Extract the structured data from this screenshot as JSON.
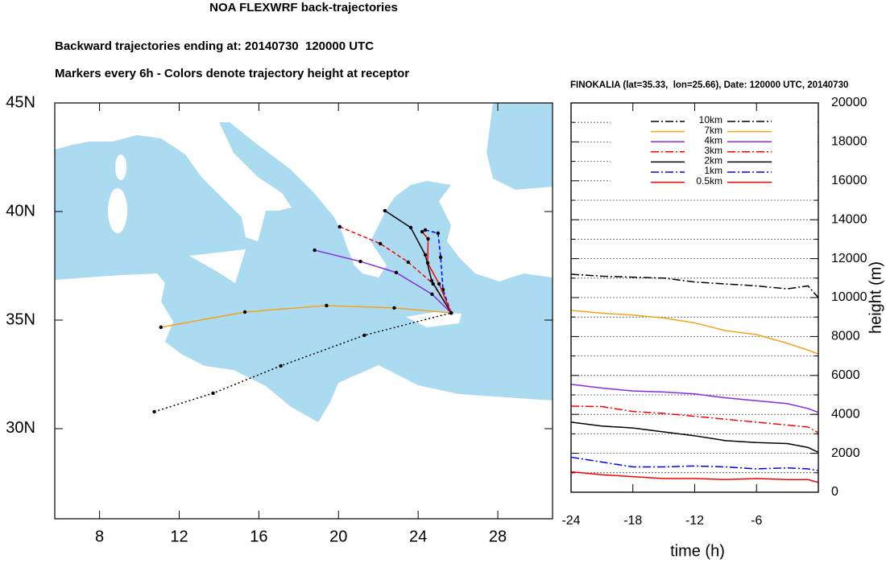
{
  "chart_data": [
    {
      "type": "trajectory-map",
      "title": "NOA FLEXWRF back-trajectories",
      "subtitle": "Backward trajectories ending at: 20140730  120000 UTC",
      "annotation": "Markers every 6h - Colors denote trajectory height at receptor",
      "xlim": [
        5.75,
        30.75
      ],
      "ylim": [
        25.85,
        45
      ],
      "xticks": [
        8,
        12,
        16,
        20,
        24,
        28
      ],
      "yticks": [
        {
          "value": 30,
          "label": "30N"
        },
        {
          "value": 35,
          "label": "35N"
        },
        {
          "value": 40,
          "label": "40N"
        },
        {
          "value": 45,
          "label": "45N"
        }
      ],
      "series": [
        {
          "color": "#000000",
          "dash": "dotted",
          "lon": [
            10.75,
            13.7,
            17.1,
            21.3,
            25.66
          ],
          "lat": [
            30.78,
            31.63,
            32.89,
            34.3,
            35.33
          ]
        },
        {
          "color": "#f5a21b",
          "dash": "solid",
          "lon": [
            11.08,
            15.3,
            19.4,
            22.8,
            25.66
          ],
          "lat": [
            34.67,
            35.37,
            35.67,
            35.56,
            35.33
          ]
        },
        {
          "color": "#8a2be2",
          "dash": "solid",
          "lon": [
            18.8,
            21.1,
            22.9,
            24.7,
            25.66
          ],
          "lat": [
            38.22,
            37.7,
            37.19,
            36.19,
            35.33
          ]
        },
        {
          "color": "#ff0000",
          "dash": "dashed",
          "lon": [
            20.06,
            22.1,
            23.5,
            24.75,
            25.66
          ],
          "lat": [
            39.3,
            38.52,
            37.67,
            36.67,
            35.33
          ]
        },
        {
          "color": "#000000",
          "dash": "solid",
          "lon": [
            22.33,
            23.63,
            24.36,
            24.68,
            25.66
          ],
          "lat": [
            40.04,
            39.26,
            38.0,
            36.81,
            35.33
          ]
        },
        {
          "color": "#0000ff",
          "dash": "dashed",
          "lon": [
            24.36,
            25.0,
            25.13,
            25.25,
            25.66
          ],
          "lat": [
            39.15,
            39.0,
            37.89,
            36.4,
            35.33
          ]
        },
        {
          "color": "#ff0000",
          "dash": "solid",
          "lon": [
            24.2,
            24.5,
            24.48,
            25.05,
            25.66
          ],
          "lat": [
            39.07,
            38.74,
            37.63,
            36.67,
            35.33
          ]
        }
      ]
    },
    {
      "type": "line",
      "title": "FINOKALIA (lat=35.33,  lon=25.66), Date: 120000 UTC, 20140730",
      "x_label": "time (h)",
      "y_label": "height (m)",
      "x": [
        -24,
        -21,
        -18,
        -15,
        -12,
        -9,
        -6,
        -3,
        -1,
        0
      ],
      "xlim": [
        -24,
        0
      ],
      "xticks": [
        -24,
        -18,
        -12,
        -6
      ],
      "ylim": [
        0,
        20000
      ],
      "yticks": [
        0,
        2000,
        4000,
        6000,
        8000,
        10000,
        12000,
        14000,
        16000,
        18000,
        20000
      ],
      "yticks_minor": [
        1000,
        3000,
        5000,
        7000,
        9000,
        11000,
        13000,
        15000,
        17000,
        19000
      ],
      "grid": true,
      "series": [
        {
          "name": "10km",
          "color": "#000000",
          "dash": "dashdot",
          "values": [
            11200,
            11100,
            11050,
            11000,
            10800,
            10700,
            10600,
            10450,
            10600,
            10000
          ]
        },
        {
          "name": "7km",
          "color": "#f5a21b",
          "dash": "solid",
          "values": [
            9340,
            9200,
            9100,
            8950,
            8700,
            8300,
            8100,
            7650,
            7300,
            7100
          ]
        },
        {
          "name": "4km",
          "color": "#8a2be2",
          "dash": "solid",
          "values": [
            5540,
            5350,
            5200,
            5150,
            5050,
            4850,
            4700,
            4550,
            4300,
            4100
          ]
        },
        {
          "name": "3km",
          "color": "#ff0000",
          "dash": "dashdot",
          "values": [
            4420,
            4400,
            4150,
            4050,
            3900,
            3750,
            3600,
            3450,
            3350,
            3050
          ]
        },
        {
          "name": "2km",
          "color": "#000000",
          "dash": "solid",
          "values": [
            3600,
            3400,
            3300,
            3100,
            2900,
            2650,
            2550,
            2500,
            2300,
            2050
          ]
        },
        {
          "name": "1km",
          "color": "#0000ff",
          "dash": "dashdot",
          "values": [
            1800,
            1550,
            1300,
            1300,
            1350,
            1300,
            1200,
            1250,
            1200,
            1100
          ]
        },
        {
          "name": "0.5km",
          "color": "#ff0000",
          "dash": "solid",
          "values": [
            1050,
            900,
            800,
            700,
            700,
            650,
            700,
            650,
            650,
            500
          ]
        }
      ]
    }
  ]
}
